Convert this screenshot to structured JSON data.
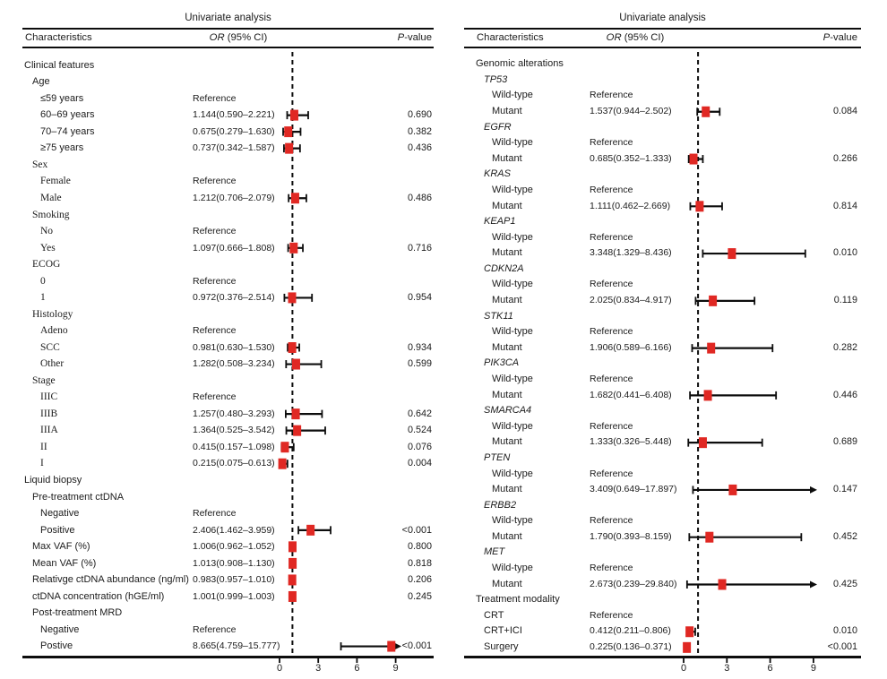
{
  "figure_type": "forest-plot",
  "marker_color": "#e02823",
  "line_color": "#0d0d0d",
  "chart_data": [
    {
      "type": "forest",
      "title": "Univariate analysis",
      "columns": {
        "characteristics": "Characteristics",
        "or_italic": "OR",
        "or_rest": " (95% CI)",
        "p_italic": "P",
        "p_rest": "-value"
      },
      "axis": {
        "ticks": [
          "0",
          "3",
          "6",
          "9"
        ],
        "tick_values": [
          0,
          3,
          6,
          9
        ],
        "ref_line": 1
      },
      "rows": [
        {
          "label": "Clinical features",
          "indent": 0
        },
        {
          "label": "Age",
          "indent": 1
        },
        {
          "label": "≤59 years",
          "indent": 2,
          "or_text": "Reference"
        },
        {
          "label": "60–69 years",
          "indent": 2,
          "or_text": "1.144(0.590–2.221)",
          "or": 1.144,
          "lo": 0.59,
          "hi": 2.221,
          "p": "0.690"
        },
        {
          "label": "70–74 years",
          "indent": 2,
          "or_text": "0.675(0.279–1.630)",
          "or": 0.675,
          "lo": 0.279,
          "hi": 1.63,
          "p": "0.382"
        },
        {
          "label": "≥75 years",
          "indent": 2,
          "or_text": "0.737(0.342–1.587)",
          "or": 0.737,
          "lo": 0.342,
          "hi": 1.587,
          "p": "0.436"
        },
        {
          "label": "Sex",
          "indent": 1,
          "serif": true
        },
        {
          "label": "Female",
          "indent": 2,
          "serif": true,
          "or_text": "Reference"
        },
        {
          "label": "Male",
          "indent": 2,
          "serif": true,
          "or_text": "1.212(0.706–2.079)",
          "or": 1.212,
          "lo": 0.706,
          "hi": 2.079,
          "p": "0.486"
        },
        {
          "label": "Smoking",
          "indent": 1,
          "serif": true
        },
        {
          "label": "No",
          "indent": 2,
          "serif": true,
          "or_text": "Reference"
        },
        {
          "label": "Yes",
          "indent": 2,
          "serif": true,
          "or_text": "1.097(0.666–1.808)",
          "or": 1.097,
          "lo": 0.666,
          "hi": 1.808,
          "p": "0.716"
        },
        {
          "label": "ECOG",
          "indent": 1,
          "serif": true
        },
        {
          "label": "0",
          "indent": 2,
          "serif": true,
          "or_text": "Reference"
        },
        {
          "label": "1",
          "indent": 2,
          "serif": true,
          "or_text": "0.972(0.376–2.514)",
          "or": 0.972,
          "lo": 0.376,
          "hi": 2.514,
          "p": "0.954"
        },
        {
          "label": "Histology",
          "indent": 1,
          "serif": true
        },
        {
          "label": "Adeno",
          "indent": 2,
          "serif": true,
          "or_text": "Reference"
        },
        {
          "label": "SCC",
          "indent": 2,
          "serif": true,
          "or_text": "0.981(0.630–1.530)",
          "or": 0.981,
          "lo": 0.63,
          "hi": 1.53,
          "p": "0.934"
        },
        {
          "label": "Other",
          "indent": 2,
          "serif": true,
          "or_text": "1.282(0.508–3.234)",
          "or": 1.282,
          "lo": 0.508,
          "hi": 3.234,
          "p": "0.599"
        },
        {
          "label": "Stage",
          "indent": 1,
          "serif": true
        },
        {
          "label": "IIIC",
          "indent": 2,
          "serif": true,
          "or_text": "Reference"
        },
        {
          "label": "IIIB",
          "indent": 2,
          "serif": true,
          "or_text": "1.257(0.480–3.293)",
          "or": 1.257,
          "lo": 0.48,
          "hi": 3.293,
          "p": "0.642"
        },
        {
          "label": "IIIA",
          "indent": 2,
          "serif": true,
          "or_text": "1.364(0.525–3.542)",
          "or": 1.364,
          "lo": 0.525,
          "hi": 3.542,
          "p": "0.524"
        },
        {
          "label": "II",
          "indent": 2,
          "serif": true,
          "or_text": "0.415(0.157–1.098)",
          "or": 0.415,
          "lo": 0.157,
          "hi": 1.098,
          "p": "0.076"
        },
        {
          "label": "I",
          "indent": 2,
          "serif": true,
          "or_text": "0.215(0.075–0.613)",
          "or": 0.215,
          "lo": 0.075,
          "hi": 0.613,
          "p": "0.004"
        },
        {
          "label": "Liquid biopsy",
          "indent": 0
        },
        {
          "label": "Pre-treatment ctDNA",
          "indent": 1
        },
        {
          "label": "Negative",
          "indent": 2,
          "or_text": "Reference"
        },
        {
          "label": "Positive",
          "indent": 2,
          "or_text": "2.406(1.462–3.959)",
          "or": 2.406,
          "lo": 1.462,
          "hi": 3.959,
          "p": "<0.001"
        },
        {
          "label": "Max VAF (%)",
          "indent": 1,
          "or_text": "1.006(0.962–1.052)",
          "or": 1.006,
          "lo": 0.962,
          "hi": 1.052,
          "p": "0.800"
        },
        {
          "label": "Mean VAF (%)",
          "indent": 1,
          "or_text": "1.013(0.908–1.130)",
          "or": 1.013,
          "lo": 0.908,
          "hi": 1.13,
          "p": "0.818"
        },
        {
          "label": "Relativge ctDNA abundance (ng/ml)",
          "indent": 1,
          "or_text": "0.983(0.957–1.010)",
          "or": 0.983,
          "lo": 0.957,
          "hi": 1.01,
          "p": "0.206"
        },
        {
          "label": "ctDNA concentration (hGE/ml)",
          "indent": 1,
          "or_text": "1.001(0.999–1.003)",
          "or": 1.001,
          "lo": 0.999,
          "hi": 1.003,
          "p": "0.245"
        },
        {
          "label": "Post-treatment MRD",
          "indent": 1
        },
        {
          "label": "Negative",
          "indent": 2,
          "or_text": "Reference"
        },
        {
          "label": "Postive",
          "indent": 2,
          "or_text": "8.665(4.759–15.777)",
          "or": 8.665,
          "lo": 4.759,
          "hi": 15.777,
          "p": "<0.001"
        }
      ]
    },
    {
      "type": "forest",
      "title": "Univariate analysis",
      "columns": {
        "characteristics": "Characteristics",
        "or_italic": "OR",
        "or_rest": " (95% CI)",
        "p_italic": "P",
        "p_rest": "-value"
      },
      "axis": {
        "ticks": [
          "0",
          "3",
          "6",
          "9"
        ],
        "tick_values": [
          0,
          3,
          6,
          9
        ],
        "ref_line": 1
      },
      "rows": [
        {
          "label": "Genomic alterations",
          "indent": 0
        },
        {
          "label": "TP53",
          "indent": 1,
          "gene": true
        },
        {
          "label": "Wild-type",
          "indent": 2,
          "or_text": "Reference"
        },
        {
          "label": "Mutant",
          "indent": 2,
          "or_text": "1.537(0.944–2.502)",
          "or": 1.537,
          "lo": 0.944,
          "hi": 2.502,
          "p": "0.084"
        },
        {
          "label": "EGFR",
          "indent": 1,
          "gene": true
        },
        {
          "label": "Wild-type",
          "indent": 2,
          "or_text": "Reference"
        },
        {
          "label": "Mutant",
          "indent": 2,
          "or_text": "0.685(0.352–1.333)",
          "or": 0.685,
          "lo": 0.352,
          "hi": 1.333,
          "p": "0.266"
        },
        {
          "label": "KRAS",
          "indent": 1,
          "gene": true
        },
        {
          "label": "Wild-type",
          "indent": 2,
          "or_text": "Reference"
        },
        {
          "label": "Mutant",
          "indent": 2,
          "or_text": "1.111(0.462–2.669)",
          "or": 1.111,
          "lo": 0.462,
          "hi": 2.669,
          "p": "0.814"
        },
        {
          "label": "KEAP1",
          "indent": 1,
          "gene": true
        },
        {
          "label": "Wild-type",
          "indent": 2,
          "or_text": "Reference"
        },
        {
          "label": "Mutant",
          "indent": 2,
          "or_text": "3.348(1.329–8.436)",
          "or": 3.348,
          "lo": 1.329,
          "hi": 8.436,
          "p": "0.010"
        },
        {
          "label": "CDKN2A",
          "indent": 1,
          "gene": true
        },
        {
          "label": "Wild-type",
          "indent": 2,
          "or_text": "Reference"
        },
        {
          "label": "Mutant",
          "indent": 2,
          "or_text": "2.025(0.834–4.917)",
          "or": 2.025,
          "lo": 0.834,
          "hi": 4.917,
          "p": "0.119"
        },
        {
          "label": "STK11",
          "indent": 1,
          "gene": true
        },
        {
          "label": "Wild-type",
          "indent": 2,
          "or_text": "Reference"
        },
        {
          "label": "Mutant",
          "indent": 2,
          "or_text": "1.906(0.589–6.166)",
          "or": 1.906,
          "lo": 0.589,
          "hi": 6.166,
          "p": "0.282"
        },
        {
          "label": "PIK3CA",
          "indent": 1,
          "gene": true
        },
        {
          "label": "Wild-type",
          "indent": 2,
          "or_text": "Reference"
        },
        {
          "label": "Mutant",
          "indent": 2,
          "or_text": "1.682(0.441–6.408)",
          "or": 1.682,
          "lo": 0.441,
          "hi": 6.408,
          "p": "0.446"
        },
        {
          "label": "SMARCA4",
          "indent": 1,
          "gene": true
        },
        {
          "label": "Wild-type",
          "indent": 2,
          "or_text": "Reference"
        },
        {
          "label": "Mutant",
          "indent": 2,
          "or_text": "1.333(0.326–5.448)",
          "or": 1.333,
          "lo": 0.326,
          "hi": 5.448,
          "p": "0.689"
        },
        {
          "label": "PTEN",
          "indent": 1,
          "gene": true
        },
        {
          "label": "Wild-type",
          "indent": 2,
          "or_text": "Reference"
        },
        {
          "label": "Mutant",
          "indent": 2,
          "or_text": "3.409(0.649–17.897)",
          "or": 3.409,
          "lo": 0.649,
          "hi": 17.897,
          "p": "0.147"
        },
        {
          "label": "ERBB2",
          "indent": 1,
          "gene": true
        },
        {
          "label": "Wild-type",
          "indent": 2,
          "or_text": "Reference"
        },
        {
          "label": "Mutant",
          "indent": 2,
          "or_text": "1.790(0.393–8.159)",
          "or": 1.79,
          "lo": 0.393,
          "hi": 8.159,
          "p": "0.452"
        },
        {
          "label": "MET",
          "indent": 1,
          "gene": true
        },
        {
          "label": "Wild-type",
          "indent": 2,
          "or_text": "Reference"
        },
        {
          "label": "Mutant",
          "indent": 2,
          "or_text": "2.673(0.239–29.840)",
          "or": 2.673,
          "lo": 0.239,
          "hi": 29.84,
          "p": "0.425"
        },
        {
          "label": "Treatment modality",
          "indent": 0
        },
        {
          "label": "CRT",
          "indent": 1,
          "or_text": "Reference"
        },
        {
          "label": "CRT+ICI",
          "indent": 1,
          "or_text": "0.412(0.211–0.806)",
          "or": 0.412,
          "lo": 0.211,
          "hi": 0.806,
          "p": "0.010"
        },
        {
          "label": "Surgery",
          "indent": 1,
          "or_text": "0.225(0.136–0.371)",
          "or": 0.225,
          "lo": 0.136,
          "hi": 0.371,
          "p": "<0.001"
        }
      ]
    }
  ]
}
